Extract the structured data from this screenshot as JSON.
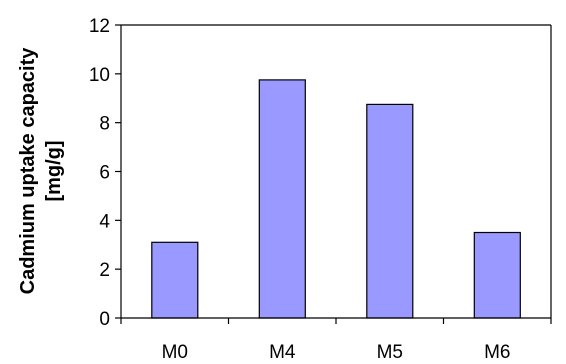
{
  "chart_data": {
    "type": "bar",
    "title": "",
    "xlabel": "",
    "ylabel_line1": "Cadmium uptake capacity",
    "ylabel_line2": "[mg/g]",
    "categories": [
      "M0",
      "M4",
      "M5",
      "M6"
    ],
    "values": [
      3.1,
      9.75,
      8.75,
      3.5
    ],
    "ylim": [
      0,
      12
    ],
    "yticks": [
      0,
      2,
      4,
      6,
      8,
      10,
      12
    ],
    "grid": false,
    "legend": "none",
    "bar_color": "#9999ff",
    "bar_edge_color": "#000000"
  }
}
